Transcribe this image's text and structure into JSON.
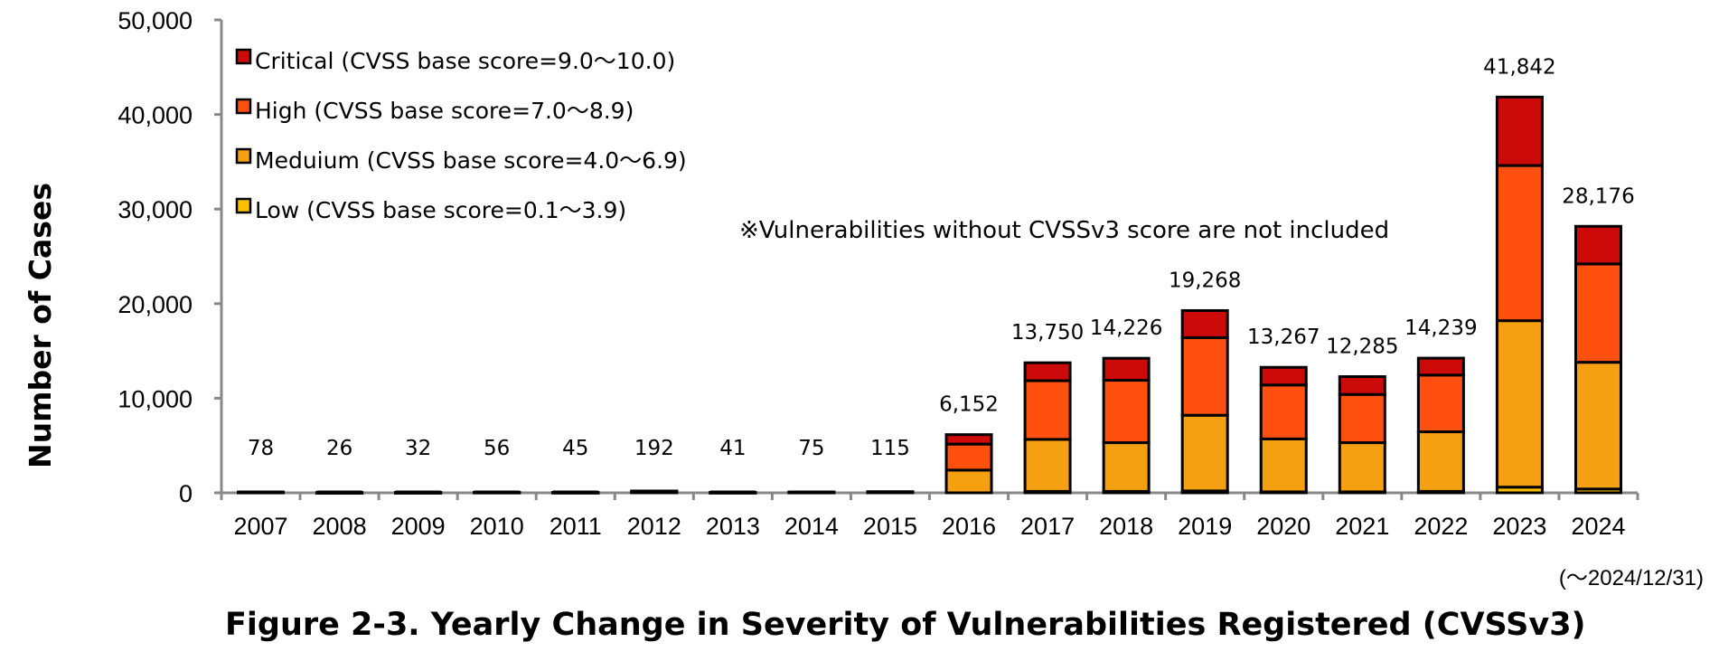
{
  "chart_data": {
    "type": "bar",
    "stacked": true,
    "title": "Figure 2-3. Yearly Change in Severity of Vulnerabilities Registered (CVSSv3)",
    "xlabel": "",
    "ylabel": "Number of Cases",
    "ylim": [
      0,
      50000
    ],
    "yticks": [
      "0",
      "10,000",
      "20,000",
      "30,000",
      "40,000",
      "50,000"
    ],
    "ytick_values": [
      0,
      10000,
      20000,
      30000,
      40000,
      50000
    ],
    "categories": [
      "2007",
      "2008",
      "2009",
      "2010",
      "2011",
      "2012",
      "2013",
      "2014",
      "2015",
      "2016",
      "2017",
      "2018",
      "2019",
      "2020",
      "2021",
      "2022",
      "2023",
      "2024"
    ],
    "series": [
      {
        "name": "Low (CVSS base score=0.1～3.9)",
        "color": "#FFC000",
        "values": [
          0,
          0,
          0,
          0,
          0,
          0,
          0,
          0,
          0,
          0,
          150,
          150,
          200,
          100,
          100,
          150,
          600,
          400
        ]
      },
      {
        "name": "Meduium (CVSS base score=4.0～6.9)",
        "color": "#F5A010",
        "values": [
          40,
          10,
          15,
          30,
          20,
          100,
          20,
          40,
          60,
          2400,
          5500,
          5150,
          8000,
          5600,
          5200,
          6300,
          17600,
          13400
        ]
      },
      {
        "name": "High (CVSS base score=7.0～8.9)",
        "color": "#FF5010",
        "values": [
          30,
          12,
          12,
          20,
          18,
          70,
          16,
          28,
          45,
          2750,
          6200,
          6600,
          8200,
          5700,
          5100,
          6000,
          16400,
          10400
        ]
      },
      {
        "name": "Critical (CVSS base score=9.0～10.0)",
        "color": "#CC0A0A",
        "values": [
          8,
          4,
          5,
          6,
          7,
          22,
          5,
          7,
          10,
          1002,
          1900,
          2326,
          2868,
          1867,
          1885,
          1789,
          7242,
          3976
        ]
      }
    ],
    "totals": [
      78,
      26,
      32,
      56,
      45,
      192,
      41,
      75,
      115,
      6152,
      13750,
      14226,
      19268,
      13267,
      12285,
      14239,
      41842,
      28176
    ],
    "total_labels": [
      "78",
      "26",
      "32",
      "56",
      "45",
      "192",
      "41",
      "75",
      "115",
      "6,152",
      "13,750",
      "14,226",
      "19,268",
      "13,267",
      "12,285",
      "14,239",
      "41,842",
      "28,176"
    ],
    "legend_order": [
      3,
      2,
      1,
      0
    ],
    "legend_position": "top-left",
    "note": "※Vulnerabilities without CVSSv3 score are not included",
    "period_note": "(～2024/12/31)"
  }
}
